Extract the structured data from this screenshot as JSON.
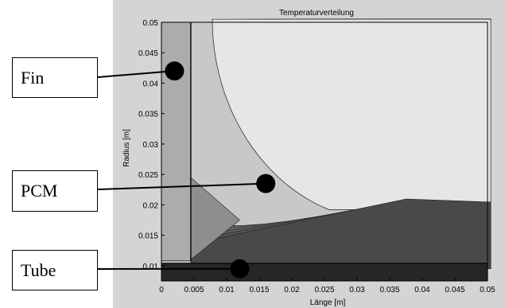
{
  "chart_data": {
    "type": "heatmap",
    "subtype": "filled-contour",
    "title": "Temperaturverteilung",
    "xlabel": "Länge [m]",
    "ylabel": "Radius [m]",
    "xlim": [
      0,
      0.05
    ],
    "ylim": [
      0.0075,
      0.05
    ],
    "xticks": [
      "0",
      "0.005",
      "0.01",
      "0.015",
      "0.02",
      "0.025",
      "0.03",
      "0.035",
      "0.04",
      "0.045",
      "0.05"
    ],
    "yticks": [
      "0.01",
      "0.015",
      "0.02",
      "0.025",
      "0.03",
      "0.035",
      "0.04",
      "0.045",
      "0.05"
    ],
    "grid": false,
    "colormap": "grayscale",
    "regions": [
      {
        "label": "Fin",
        "x": 0.002,
        "y": 0.042
      },
      {
        "label": "PCM",
        "x": 0.016,
        "y": 0.0235
      },
      {
        "label": "Tube",
        "x": 0.012,
        "y": 0.0095
      }
    ]
  },
  "colors": {
    "figure_bg": "#d4d4d4",
    "axes_bg": "#c8c8c8",
    "fin": "#acacac",
    "tube": "#262626"
  }
}
